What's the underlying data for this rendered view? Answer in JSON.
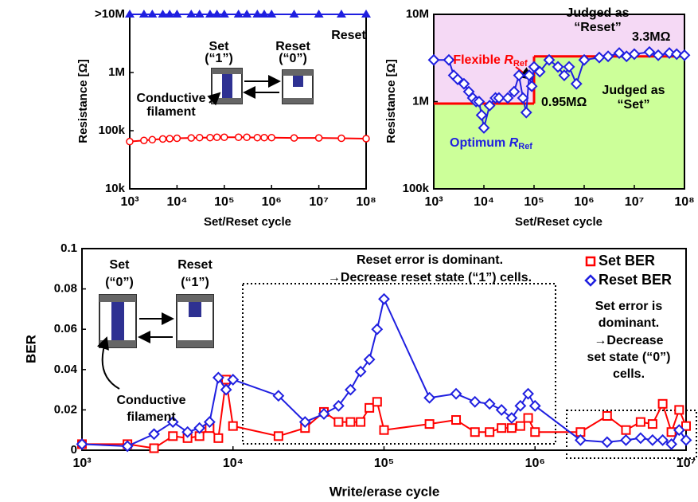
{
  "chart_data": [
    {
      "type": "line",
      "xlabel": "Set/Reset cycle",
      "ylabel": "Resistance [Ω]",
      "xlog": true,
      "ylog": true,
      "xlim": [
        1000,
        100000000
      ],
      "ylim": [
        10000,
        10000000
      ],
      "xticks": [
        {
          "value": 1000,
          "label": "10³"
        },
        {
          "value": 10000,
          "label": "10⁴"
        },
        {
          "value": 100000,
          "label": "10⁵"
        },
        {
          "value": 1000000,
          "label": "10⁶"
        },
        {
          "value": 10000000,
          "label": "10⁷"
        },
        {
          "value": 100000000,
          "label": "10⁸"
        }
      ],
      "yticks": [
        {
          "value": 10000,
          "label": "10k"
        },
        {
          "value": 100000,
          "label": "100k"
        },
        {
          "value": 1000000,
          "label": "1M"
        },
        {
          "value": 10000000,
          "label": ">10M"
        }
      ],
      "x": [
        1000,
        2000,
        3000,
        5000,
        7000,
        10000,
        20000,
        30000,
        50000,
        70000,
        100000,
        200000,
        300000,
        500000,
        700000,
        1000000,
        3000000,
        10000000,
        30000000,
        100000000
      ],
      "series": [
        {
          "name": "Reset",
          "color": "#1f1fe0",
          "marker": "triangle",
          "values": [
            10000000,
            10000000,
            10000000,
            10000000,
            10000000,
            10000000,
            10000000,
            10000000,
            10000000,
            10000000,
            10000000,
            10000000,
            10000000,
            10000000,
            10000000,
            10000000,
            10000000,
            10000000,
            10000000,
            10000000
          ]
        },
        {
          "name": "Set",
          "color": "#ff0000",
          "marker": "circle",
          "values": [
            65000,
            68000,
            70000,
            72000,
            73000,
            74000,
            75000,
            76000,
            76000,
            77000,
            77000,
            77000,
            77000,
            76000,
            76000,
            76000,
            75000,
            75000,
            74000,
            73000
          ]
        }
      ],
      "annotations": [
        {
          "text": "Set",
          "color": "#ff0000"
        },
        {
          "text": "(“1”)",
          "color": "#ff0000"
        },
        {
          "text": "Reset",
          "color": "#1f1fe0"
        },
        {
          "text": "(“0”)",
          "color": "#1f1fe0"
        },
        {
          "text": "Conductive",
          "color": "#000000"
        },
        {
          "text": "filament",
          "color": "#000000"
        }
      ]
    },
    {
      "type": "line",
      "xlabel": "Set/Reset cycle",
      "ylabel": "Resistance [Ω]",
      "xlog": true,
      "ylog": true,
      "xlim": [
        1000,
        100000000
      ],
      "ylim": [
        100000,
        10000000
      ],
      "xticks": [
        {
          "value": 1000,
          "label": "10³"
        },
        {
          "value": 10000,
          "label": "10⁴"
        },
        {
          "value": 100000,
          "label": "10⁵"
        },
        {
          "value": 1000000,
          "label": "10⁶"
        },
        {
          "value": 10000000,
          "label": "10⁷"
        },
        {
          "value": 100000000,
          "label": "10⁸"
        }
      ],
      "yticks": [
        {
          "value": 100000,
          "label": "100k"
        },
        {
          "value": 1000000,
          "label": "1M"
        },
        {
          "value": 10000000,
          "label": "10M"
        }
      ],
      "x": [
        1000,
        2000,
        2500,
        3000,
        4000,
        5000,
        6000,
        7000,
        8000,
        9000,
        10000,
        13000,
        17000,
        20000,
        30000,
        40000,
        50000,
        60000,
        70000,
        80000,
        90000,
        100000,
        130000,
        200000,
        300000,
        400000,
        500000,
        700000,
        1000000,
        2000000,
        3000000,
        5000000,
        7000000,
        10000000,
        20000000,
        30000000,
        50000000,
        70000000,
        100000000
      ],
      "series": [
        {
          "color": "#1f1fe0",
          "marker": "diamond",
          "values": [
            3000000,
            3000000,
            2000000,
            1800000,
            1600000,
            1300000,
            1100000,
            1000000,
            1000000,
            700000,
            500000,
            900000,
            1100000,
            1100000,
            1100000,
            1300000,
            2000000,
            1100000,
            750000,
            2000000,
            1500000,
            2500000,
            2200000,
            3000000,
            2500000,
            2000000,
            2500000,
            1600000,
            3000000,
            3200000,
            3300000,
            3600000,
            3300000,
            3500000,
            3700000,
            3400000,
            3600000,
            3500000,
            3400000
          ]
        }
      ],
      "thresholds": [
        {
          "value": 950000,
          "label": "0.95MΩ",
          "from": 1000,
          "to": 100000
        },
        {
          "value": 3300000,
          "label": "3.3MΩ",
          "from": 100000,
          "to": 100000000
        }
      ],
      "threshold_color": "#ff0000",
      "above_color": "#f5d9f5",
      "below_color": "#ccff99",
      "annotations": [
        {
          "text": "Judged as",
          "color": "#000000"
        },
        {
          "text": "“Reset”",
          "color": "#000000"
        },
        {
          "text": "Judged as",
          "color": "#000000"
        },
        {
          "text": "“Set”",
          "color": "#000000"
        },
        {
          "parts": [
            "Flexible ",
            "R",
            "Ref"
          ],
          "color": "#ff0000"
        },
        {
          "parts": [
            "Optimum ",
            "R",
            "Ref"
          ],
          "color": "#1f1fe0"
        }
      ]
    },
    {
      "type": "line",
      "xlabel": "Write/erase cycle",
      "ylabel": "BER",
      "xlog": true,
      "ylog": false,
      "xlim": [
        1000,
        10000000
      ],
      "ylim": [
        0,
        0.1
      ],
      "xticks": [
        {
          "value": 1000,
          "label": "10³"
        },
        {
          "value": 10000,
          "label": "10⁴"
        },
        {
          "value": 100000,
          "label": "10⁵"
        },
        {
          "value": 1000000,
          "label": "10⁶"
        },
        {
          "value": 10000000,
          "label": "10⁷"
        }
      ],
      "yticks": [
        0,
        0.02,
        0.04,
        0.06,
        0.08,
        0.1
      ],
      "legend": "upper right",
      "x": [
        1000,
        2000,
        3000,
        4000,
        5000,
        6000,
        7000,
        8000,
        9000,
        10000,
        20000,
        30000,
        40000,
        50000,
        60000,
        70000,
        80000,
        90000,
        100000,
        200000,
        300000,
        400000,
        500000,
        600000,
        700000,
        800000,
        900000,
        1000000,
        2000000,
        3000000,
        4000000,
        5000000,
        6000000,
        7000000,
        8000000,
        9000000,
        10000000
      ],
      "series": [
        {
          "name": "Set BER",
          "color": "#ff0000",
          "marker": "square",
          "values": [
            0.003,
            0.003,
            0.001,
            0.007,
            0.006,
            0.007,
            0.011,
            0.006,
            0.035,
            0.012,
            0.007,
            0.011,
            0.019,
            0.014,
            0.014,
            0.014,
            0.021,
            0.024,
            0.01,
            0.013,
            0.015,
            0.009,
            0.009,
            0.011,
            0.011,
            0.012,
            0.016,
            0.009,
            0.009,
            0.017,
            0.01,
            0.014,
            0.013,
            0.023,
            0.009,
            0.02,
            0.012
          ]
        },
        {
          "name": "Reset BER",
          "color": "#1f1fe0",
          "marker": "diamond",
          "values": [
            0.003,
            0.002,
            0.008,
            0.014,
            0.009,
            0.011,
            0.014,
            0.036,
            0.03,
            0.035,
            0.027,
            0.014,
            0.018,
            0.022,
            0.03,
            0.039,
            0.045,
            0.06,
            0.075,
            0.026,
            0.028,
            0.024,
            0.023,
            0.02,
            0.016,
            0.022,
            0.028,
            0.022,
            0.005,
            0.004,
            0.005,
            0.006,
            0.005,
            0.005,
            0.003,
            0.01,
            0.005
          ]
        }
      ],
      "annotations": [
        {
          "text": "Reset error is dominant.",
          "color": "#000000"
        },
        {
          "text": "→Decrease reset state (“1”) cells.",
          "color": "#ff0000"
        },
        {
          "text": "Set error is",
          "color": "#000000"
        },
        {
          "text": "dominant.",
          "color": "#000000"
        },
        {
          "text": "→Decrease",
          "color": "#ff0000"
        },
        {
          "text": "set state (“0”)",
          "color": "#ff0000"
        },
        {
          "text": "cells.",
          "color": "#ff0000"
        },
        {
          "text": "Set",
          "color": "#000000"
        },
        {
          "text": "(“0”)",
          "color": "#000000"
        },
        {
          "text": "Reset",
          "color": "#000000"
        },
        {
          "text": "(“1”)",
          "color": "#000000"
        },
        {
          "text": "Conductive",
          "color": "#000000"
        },
        {
          "text": "filament",
          "color": "#000000"
        }
      ]
    }
  ]
}
